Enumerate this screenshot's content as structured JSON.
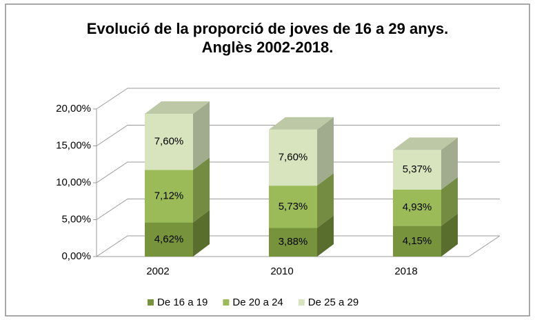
{
  "chart_data": {
    "type": "bar3d_stacked",
    "title": "Evolució de la proporció de joves de 16 a 29 anys. Anglès 2002-2018.",
    "categories": [
      "2002",
      "2010",
      "2018"
    ],
    "series": [
      {
        "name": "De 16 a 19",
        "color": "#77933c",
        "values": [
          4.62,
          3.88,
          4.15
        ],
        "value_labels": [
          "4,62%",
          "3,88%",
          "4,15%"
        ]
      },
      {
        "name": "De 20 a 24",
        "color": "#9bbb59",
        "values": [
          7.12,
          5.73,
          4.93
        ],
        "value_labels": [
          "7,12%",
          "5,73%",
          "4,93%"
        ]
      },
      {
        "name": "De 25 a 29",
        "color": "#d7e4bd",
        "values": [
          7.6,
          7.6,
          5.37
        ],
        "value_labels": [
          "7,60%",
          "7,60%",
          "5,37%"
        ]
      }
    ],
    "ylim": [
      0,
      20
    ],
    "yticks": [
      {
        "value": 0,
        "label": "0,00%"
      },
      {
        "value": 5,
        "label": "5,00%"
      },
      {
        "value": 10,
        "label": "10,00%"
      },
      {
        "value": 15,
        "label": "15,00%"
      },
      {
        "value": 20,
        "label": "20,00%"
      }
    ],
    "grid": true,
    "legend": "bottom"
  }
}
